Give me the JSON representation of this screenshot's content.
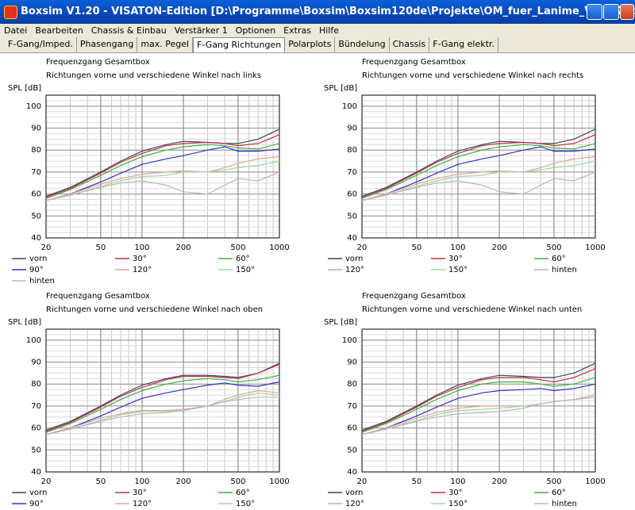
{
  "window": {
    "title": "Boxsim V1.20 - VISATON-Edition [D:\\Programme\\Boxsim\\Boxsim120de\\Projekte\\OM_fuer_Lanime_V4l_D24cm_Port09...."
  },
  "menu": [
    "Datei",
    "Bearbeiten",
    "Chassis & Einbau",
    "Verstärker 1",
    "Optionen",
    "Extras",
    "Hilfe"
  ],
  "tabs": [
    "F-Gang/Imped.",
    "Phasengang",
    "max. Pegel",
    "F-Gang Richtungen",
    "Polarplots",
    "Bündelung",
    "Chassis",
    "F-Gang elektr."
  ],
  "selected_tab": 3,
  "chart_data": [
    {
      "type": "line",
      "title": "Frequenzgang Gesamtbox",
      "subtitle": "Richtungen vorne und verschiedene Winkel nach links",
      "y_label": "SPL [dB]",
      "x_scale": "log",
      "grid": true,
      "x": [
        20,
        30,
        50,
        70,
        100,
        150,
        200,
        300,
        400,
        500,
        700,
        1000
      ],
      "xlim": [
        20,
        1000
      ],
      "xticks": [
        20,
        50,
        100,
        200,
        500,
        1000
      ],
      "ylim": [
        40,
        105
      ],
      "yticks": [
        40,
        50,
        60,
        70,
        80,
        90,
        100
      ],
      "series": [
        {
          "name": "vorn",
          "color": "#404060",
          "values": [
            59,
            63,
            70,
            75,
            79.5,
            82.5,
            84,
            83.5,
            83,
            83,
            85,
            89.5
          ]
        },
        {
          "name": "30°",
          "color": "#c03040",
          "values": [
            58.5,
            62.5,
            69.5,
            74.5,
            78.5,
            82,
            83,
            83.5,
            83,
            82,
            83,
            87
          ]
        },
        {
          "name": "60°",
          "color": "#40b040",
          "values": [
            58,
            62,
            68.5,
            73,
            77,
            80,
            81.5,
            82.5,
            82,
            81,
            80.5,
            83
          ]
        },
        {
          "name": "90°",
          "color": "#3030c0",
          "values": [
            57,
            60,
            65.5,
            69.5,
            73.5,
            76,
            77.5,
            80,
            81.5,
            79.5,
            79.5,
            80.5
          ]
        },
        {
          "name": "120°",
          "color": "#e0a0a0",
          "values": [
            57,
            60,
            64.5,
            67,
            69,
            70,
            70.5,
            70,
            72,
            74,
            76,
            77
          ]
        },
        {
          "name": "150°",
          "color": "#a0d8a0",
          "values": [
            57,
            59.5,
            63.5,
            66,
            68,
            68.5,
            70,
            70,
            71,
            72,
            73,
            75
          ]
        },
        {
          "name": "hinten",
          "color": "#b8b8b8",
          "values": [
            57,
            59.5,
            63,
            65,
            66,
            64,
            61,
            60,
            64,
            67,
            66,
            70
          ]
        }
      ]
    },
    {
      "type": "line",
      "title": "Frequenzgang Gesamtbox",
      "subtitle": "Richtungen vorne und verschiedene Winkel nach rechts",
      "y_label": "SPL [dB]",
      "x_scale": "log",
      "grid": true,
      "x": [
        20,
        30,
        50,
        70,
        100,
        150,
        200,
        300,
        400,
        500,
        700,
        1000
      ],
      "xlim": [
        20,
        1000
      ],
      "xticks": [
        20,
        50,
        100,
        200,
        500,
        1000
      ],
      "ylim": [
        40,
        105
      ],
      "yticks": [
        40,
        50,
        60,
        70,
        80,
        90,
        100
      ],
      "series": [
        {
          "name": "vorn",
          "color": "#404060",
          "values": [
            59,
            63,
            70,
            75,
            79.5,
            82.5,
            84,
            83.5,
            83,
            83,
            85,
            89.5
          ]
        },
        {
          "name": "30°",
          "color": "#c03040",
          "values": [
            58.5,
            62.5,
            69.5,
            74.5,
            78.5,
            82,
            83,
            83.5,
            83,
            82,
            83,
            87
          ]
        },
        {
          "name": "60°",
          "color": "#40b040",
          "values": [
            58,
            62,
            68.5,
            73,
            77,
            80,
            81.5,
            82.5,
            82,
            81,
            80.5,
            83
          ]
        },
        {
          "name": "90°",
          "color": "#3030c0",
          "values": [
            57,
            60,
            65.5,
            69.5,
            73.5,
            76,
            77.5,
            80,
            81.5,
            79.5,
            79.5,
            80.5
          ]
        },
        {
          "name": "120°",
          "color": "#e0a0a0",
          "values": [
            57,
            60,
            64.5,
            67,
            69,
            70,
            70.5,
            70,
            72,
            74,
            76,
            77
          ]
        },
        {
          "name": "150°",
          "color": "#a0d8a0",
          "values": [
            57,
            59.5,
            63.5,
            66,
            68,
            68.5,
            70,
            70,
            71,
            72,
            73,
            75
          ]
        },
        {
          "name": "hinten",
          "color": "#b8b8b8",
          "values": [
            57,
            59.5,
            63,
            65,
            66,
            64,
            61,
            60,
            64,
            67,
            66,
            70
          ]
        }
      ]
    },
    {
      "type": "line",
      "title": "Frequenzgang Gesamtbox",
      "subtitle": "Richtungen vorne und verschiedene Winkel nach oben",
      "y_label": "SPL [dB]",
      "x_scale": "log",
      "grid": true,
      "x": [
        20,
        30,
        50,
        70,
        100,
        150,
        200,
        300,
        400,
        500,
        700,
        1000
      ],
      "xlim": [
        20,
        1000
      ],
      "xticks": [
        20,
        50,
        100,
        200,
        500,
        1000
      ],
      "ylim": [
        40,
        105
      ],
      "yticks": [
        40,
        50,
        60,
        70,
        80,
        90,
        100
      ],
      "series": [
        {
          "name": "vorn",
          "color": "#404060",
          "values": [
            59,
            63,
            70,
            75,
            79.5,
            82.5,
            84,
            84,
            83.5,
            83,
            85,
            89.5
          ]
        },
        {
          "name": "30°",
          "color": "#c03040",
          "values": [
            58.5,
            62.5,
            69.5,
            74.5,
            78.5,
            82,
            83.5,
            83.5,
            83,
            82.5,
            85,
            89
          ]
        },
        {
          "name": "60°",
          "color": "#40b040",
          "values": [
            58,
            62,
            68.5,
            73,
            77,
            80,
            81.5,
            82.5,
            82,
            81,
            82,
            84
          ]
        },
        {
          "name": "90°",
          "color": "#3030c0",
          "values": [
            57,
            60,
            65.5,
            69.5,
            73.5,
            76,
            77.5,
            79.5,
            80.5,
            79.5,
            79,
            81
          ]
        },
        {
          "name": "120°",
          "color": "#e0a0a0",
          "values": [
            57,
            60,
            64.5,
            66.5,
            68,
            68,
            68.5,
            70,
            73,
            75,
            77,
            76
          ]
        },
        {
          "name": "150°",
          "color": "#a0d8a0",
          "values": [
            57,
            59.5,
            63.5,
            66,
            67.5,
            67.5,
            68,
            70,
            72,
            74,
            76,
            75
          ]
        },
        {
          "color": "#b8b8b8",
          "values": [
            57,
            59.5,
            63,
            65,
            66.5,
            67,
            68,
            70,
            72,
            73,
            74,
            74
          ]
        }
      ]
    },
    {
      "type": "line",
      "title": "Frequenzgang Gesamtbox",
      "subtitle": "Richtungen vorne und verschiedene Winkel nach unten",
      "y_label": "SPL [dB]",
      "x_scale": "log",
      "grid": true,
      "x": [
        20,
        30,
        50,
        70,
        100,
        150,
        200,
        300,
        400,
        500,
        700,
        1000
      ],
      "xlim": [
        20,
        1000
      ],
      "xticks": [
        20,
        50,
        100,
        200,
        500,
        1000
      ],
      "ylim": [
        40,
        105
      ],
      "yticks": [
        40,
        50,
        60,
        70,
        80,
        90,
        100
      ],
      "series": [
        {
          "name": "vorn",
          "color": "#404060",
          "values": [
            59,
            63,
            70,
            75,
            79.5,
            82.5,
            84,
            83.5,
            83,
            83,
            85,
            89.5
          ]
        },
        {
          "name": "30°",
          "color": "#c03040",
          "values": [
            58.5,
            62.5,
            69.5,
            74.5,
            78.5,
            82,
            83,
            83,
            82,
            81,
            83,
            87
          ]
        },
        {
          "name": "60°",
          "color": "#40b040",
          "values": [
            58,
            62,
            68.5,
            73,
            77,
            80,
            81,
            81,
            80,
            79,
            80,
            83
          ]
        },
        {
          "name": "90°",
          "color": "#3030c0",
          "values": [
            57,
            60,
            65.5,
            69.5,
            73.5,
            76,
            77,
            77.5,
            78,
            77,
            78,
            80
          ]
        },
        {
          "name": "120°",
          "color": "#e0a0a0",
          "values": [
            57,
            60,
            64.5,
            67,
            69,
            70,
            70,
            70,
            71,
            72,
            73,
            75
          ]
        },
        {
          "name": "150°",
          "color": "#a0d8a0",
          "values": [
            57,
            59.5,
            63.5,
            66,
            68,
            68.5,
            69,
            70,
            71,
            72,
            73,
            74
          ]
        },
        {
          "name": "hinten",
          "color": "#b8b8b8",
          "values": [
            57,
            59.5,
            63,
            65,
            66.5,
            67,
            67.5,
            69,
            71,
            72,
            73,
            74
          ]
        }
      ]
    }
  ]
}
